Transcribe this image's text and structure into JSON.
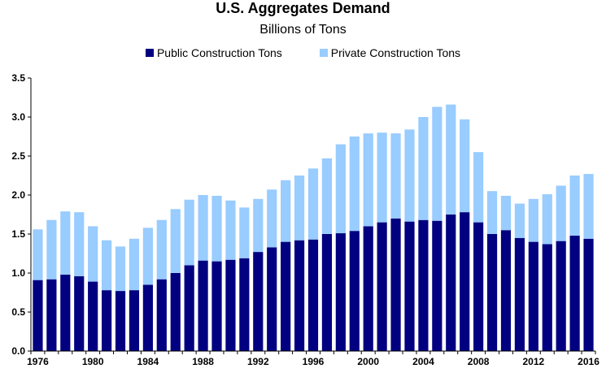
{
  "colors": {
    "public": "#000080",
    "private": "#99ccff",
    "axis": "#000000"
  },
  "chart_data": {
    "type": "bar",
    "stacked": true,
    "title": "U.S. Aggregates Demand",
    "subtitle": "Billions of Tons",
    "legend_position": "top",
    "grid": false,
    "ylim": [
      0,
      3.5
    ],
    "yticks": [
      "0.0",
      "0.5",
      "1.0",
      "1.5",
      "2.0",
      "2.5",
      "3.0",
      "3.5"
    ],
    "xtick_labels": [
      "1976",
      "1980",
      "1984",
      "1988",
      "1992",
      "1996",
      "2000",
      "2004",
      "2008",
      "2012",
      "2016"
    ],
    "categories": [
      1976,
      1977,
      1978,
      1979,
      1980,
      1981,
      1982,
      1983,
      1984,
      1985,
      1986,
      1987,
      1988,
      1989,
      1990,
      1991,
      1992,
      1993,
      1994,
      1995,
      1996,
      1997,
      1998,
      1999,
      2000,
      2001,
      2002,
      2003,
      2004,
      2005,
      2006,
      2007,
      2008,
      2009,
      2010,
      2011,
      2012,
      2013,
      2014,
      2015,
      2016
    ],
    "series": [
      {
        "name": "Public Construction Tons",
        "values": [
          0.91,
          0.92,
          0.98,
          0.96,
          0.89,
          0.78,
          0.77,
          0.78,
          0.85,
          0.92,
          1.0,
          1.1,
          1.16,
          1.15,
          1.17,
          1.19,
          1.27,
          1.33,
          1.4,
          1.42,
          1.43,
          1.5,
          1.51,
          1.54,
          1.6,
          1.65,
          1.7,
          1.66,
          1.68,
          1.67,
          1.75,
          1.78,
          1.65,
          1.5,
          1.55,
          1.45,
          1.4,
          1.37,
          1.41,
          1.48,
          1.44
        ]
      },
      {
        "name": "Private Construction Tons",
        "values": [
          0.65,
          0.76,
          0.81,
          0.82,
          0.71,
          0.64,
          0.57,
          0.66,
          0.73,
          0.76,
          0.82,
          0.84,
          0.84,
          0.84,
          0.76,
          0.65,
          0.68,
          0.74,
          0.79,
          0.83,
          0.91,
          0.97,
          1.14,
          1.21,
          1.19,
          1.15,
          1.09,
          1.18,
          1.32,
          1.46,
          1.41,
          1.19,
          0.9,
          0.55,
          0.44,
          0.44,
          0.55,
          0.64,
          0.71,
          0.77,
          0.83
        ]
      }
    ]
  }
}
